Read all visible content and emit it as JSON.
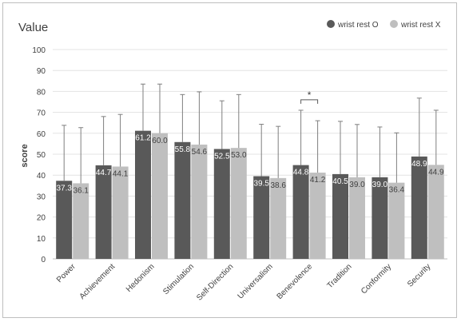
{
  "chart_data": {
    "type": "bar",
    "title": "Value",
    "ylabel": "score",
    "xlabel": "",
    "ylim": [
      0,
      100
    ],
    "yticks": [
      0,
      10,
      20,
      30,
      40,
      50,
      60,
      70,
      80,
      90,
      100
    ],
    "grid": true,
    "legend_position": "top-right",
    "categories": [
      "Power",
      "Achievement",
      "Hedonism",
      "Stimulation",
      "Self-Direction",
      "Universalism",
      "Benevolence",
      "Tradition",
      "Conformity",
      "Security"
    ],
    "series": [
      {
        "name": "wrist rest O",
        "color": "#595959",
        "values": [
          37.3,
          44.7,
          61.2,
          55.8,
          52.5,
          39.5,
          44.8,
          40.5,
          39.0,
          48.9
        ],
        "value_labels": [
          "37.3",
          "44.7",
          "61.2",
          "55.8",
          "52.5",
          "39.5",
          "44.8",
          "40.5",
          "39.0",
          "48.9"
        ],
        "error_upper": [
          63.8,
          68.0,
          83.5,
          78.5,
          75.5,
          64.3,
          71.0,
          65.7,
          63.0,
          76.8
        ]
      },
      {
        "name": "wrist rest X",
        "color": "#bfbfbf",
        "values": [
          36.1,
          44.1,
          60.0,
          54.6,
          53.0,
          38.6,
          41.2,
          39.0,
          36.4,
          44.9
        ],
        "value_labels": [
          "36.1",
          "44.1",
          "60.0",
          "54.6",
          "53.0",
          "38.6",
          "41.2",
          "39.0",
          "36.4",
          "44.9"
        ],
        "error_upper": [
          62.7,
          69.0,
          83.5,
          79.8,
          78.5,
          63.3,
          66.0,
          64.2,
          60.2,
          71.0
        ]
      }
    ],
    "annotations": [
      {
        "text": "*",
        "category": "Benevolence"
      }
    ]
  }
}
